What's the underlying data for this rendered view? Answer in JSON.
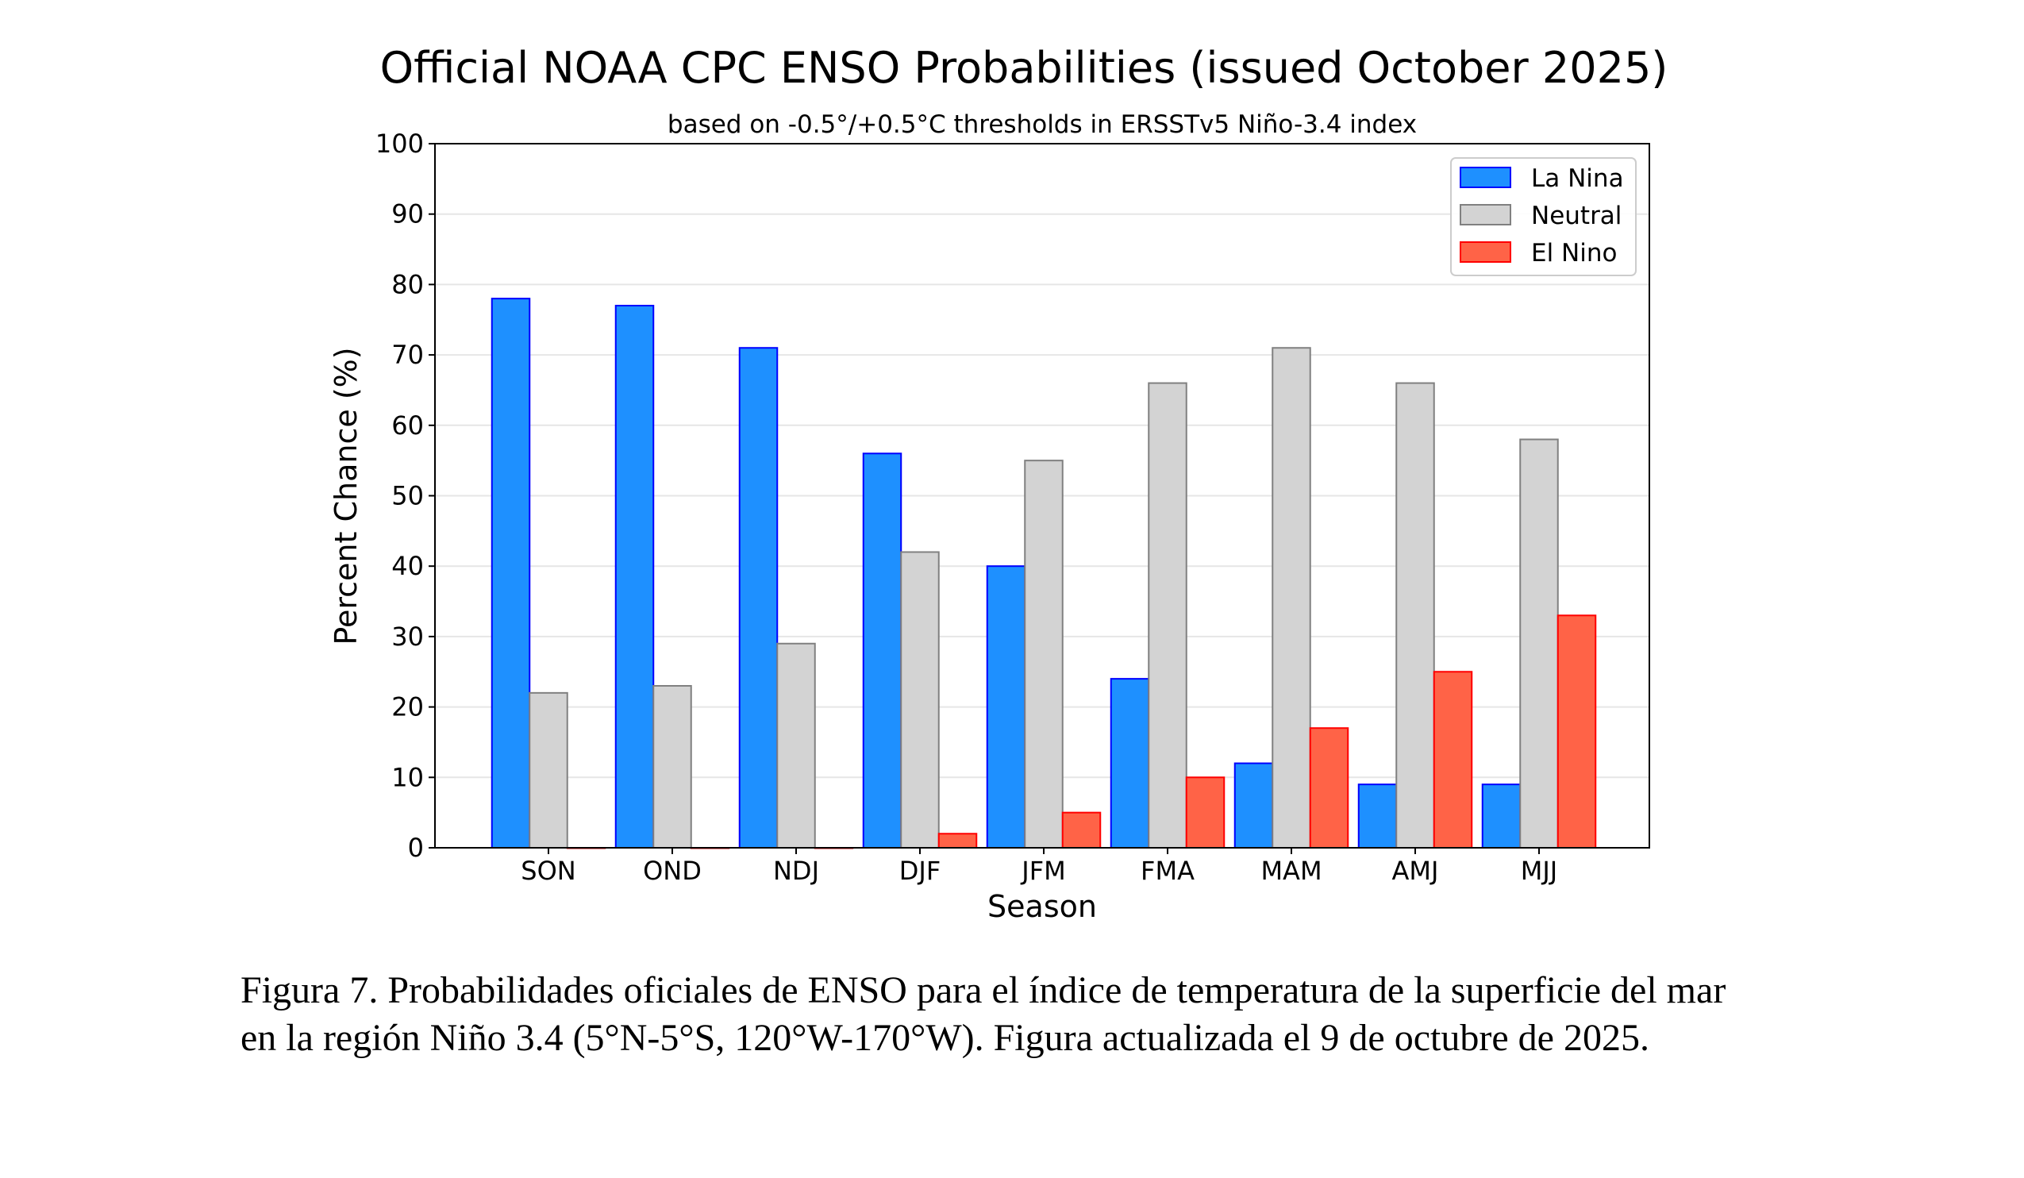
{
  "chart_data": {
    "type": "bar",
    "title": "Official NOAA CPC ENSO Probabilities (issued October 2025)",
    "subtitle": "based on -0.5°/+0.5°C thresholds in ERSSTv5 Niño-3.4 index",
    "xlabel": "Season",
    "ylabel": "Percent Chance (%)",
    "ylim": [
      0,
      100
    ],
    "yticks": [
      "0",
      "10",
      "20",
      "30",
      "40",
      "50",
      "60",
      "70",
      "80",
      "90",
      "100"
    ],
    "grid": true,
    "legend_position": "top-right",
    "categories": [
      "SON",
      "OND",
      "NDJ",
      "DJF",
      "JFM",
      "FMA",
      "MAM",
      "AMJ",
      "MJJ"
    ],
    "series": [
      {
        "name": "La Nina",
        "color": "#1E90FF",
        "edge": "#0000FF",
        "values": [
          78,
          77,
          71,
          56,
          40,
          24,
          12,
          9,
          9
        ]
      },
      {
        "name": "Neutral",
        "color": "#D3D3D3",
        "edge": "#808080",
        "values": [
          22,
          23,
          29,
          42,
          55,
          66,
          71,
          66,
          58
        ]
      },
      {
        "name": "El Nino",
        "color": "#FF6347",
        "edge": "#FF0000",
        "values": [
          0,
          0,
          0,
          2,
          5,
          10,
          17,
          25,
          33
        ]
      }
    ]
  },
  "caption": {
    "line1": "Figura 7. Probabilidades oficiales de ENSO para el índice de temperatura de la superficie del mar",
    "line2": "en la región Niño 3.4 (5°N-5°S, 120°W-170°W). Figura actualizada el 9 de octubre de 2025."
  }
}
